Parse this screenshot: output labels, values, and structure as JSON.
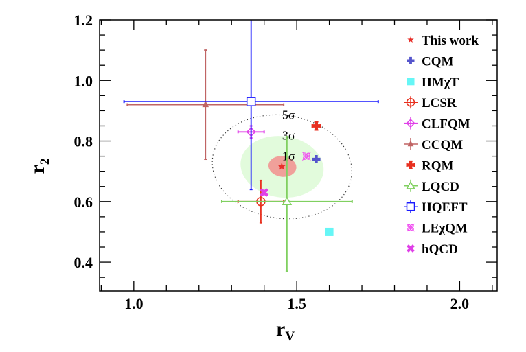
{
  "chart_data": {
    "type": "scatter",
    "xlabel": "r",
    "xlabel_sub": "V",
    "ylabel": "r",
    "ylabel_sub": "2",
    "xlim": [
      0.895,
      2.115
    ],
    "ylim": [
      0.305,
      1.2
    ],
    "xticks": [
      1.0,
      1.5,
      2.0
    ],
    "xtick_labels": [
      "1.0",
      "1.5",
      "2.0"
    ],
    "yticks": [
      0.4,
      0.6,
      0.8,
      1.0,
      1.2
    ],
    "ytick_labels": [
      "0.4",
      "0.6",
      "0.8",
      "1.0",
      "1.2"
    ],
    "grid": false,
    "legend_position": "right",
    "contours": [
      {
        "label": "5σ",
        "center": [
          1.455,
          0.715
        ],
        "semi_axes": [
          0.215,
          0.17
        ],
        "style": "dotted",
        "color": "#333333",
        "label_at": [
          1.475,
          0.873
        ]
      },
      {
        "label": "3σ",
        "center": [
          1.455,
          0.715
        ],
        "semi_axes": [
          0.128,
          0.101
        ],
        "style": "filled",
        "color": "#e2fbdc",
        "label_at": [
          1.475,
          0.805
        ]
      },
      {
        "label": "1σ",
        "center": [
          1.456,
          0.716
        ],
        "semi_axes": [
          0.043,
          0.034
        ],
        "style": "filled",
        "color": "#f0a09a",
        "label_at": [
          1.475,
          0.737
        ]
      }
    ],
    "series": [
      {
        "name": "This work",
        "x": 1.454,
        "y": 0.716,
        "marker": "star",
        "color": "#e8302a"
      },
      {
        "name": "CQM",
        "x": 1.56,
        "y": 0.74,
        "marker": "plus",
        "color": "#5555cc"
      },
      {
        "name": "HMχT",
        "x": 1.6,
        "y": 0.5,
        "marker": "square-filled",
        "color": "#66f6f6"
      },
      {
        "name": "LCSR",
        "x": 1.39,
        "y": 0.6,
        "xerr": [
          1.32,
          1.46
        ],
        "yerr": [
          0.53,
          0.67
        ],
        "marker": "circle-open",
        "color": "#e8301e"
      },
      {
        "name": "CLFQM",
        "x": 1.36,
        "y": 0.83,
        "xerr": [
          1.32,
          1.4
        ],
        "yerr": [
          0.81,
          0.85
        ],
        "marker": "diamond-open",
        "color": "#e040e8"
      },
      {
        "name": "CCQM",
        "x": 1.22,
        "y": 0.92,
        "xerr": [
          0.98,
          1.46
        ],
        "yerr": [
          0.74,
          1.1
        ],
        "marker": "triangle-filled",
        "color": "#c06464"
      },
      {
        "name": "RQM",
        "x": 1.56,
        "y": 0.85,
        "marker": "cross-bold",
        "color": "#e83020"
      },
      {
        "name": "LQCD",
        "x": 1.47,
        "y": 0.6,
        "xerr": [
          1.27,
          1.67
        ],
        "yerr": [
          0.37,
          0.815
        ],
        "marker": "triangle-open",
        "color": "#80d060"
      },
      {
        "name": "HQEFT",
        "x": 1.36,
        "y": 0.93,
        "xerr": [
          0.97,
          1.75
        ],
        "yerr": [
          0.64,
          1.25
        ],
        "marker": "square-open",
        "color": "#1a1aff"
      },
      {
        "name": "LEχQM",
        "x": 1.53,
        "y": 0.75,
        "marker": "asterisk-open",
        "color": "#f050f0"
      },
      {
        "name": "hQCD",
        "x": 1.4,
        "y": 0.63,
        "marker": "x-bold",
        "color": "#e040e8"
      }
    ]
  }
}
